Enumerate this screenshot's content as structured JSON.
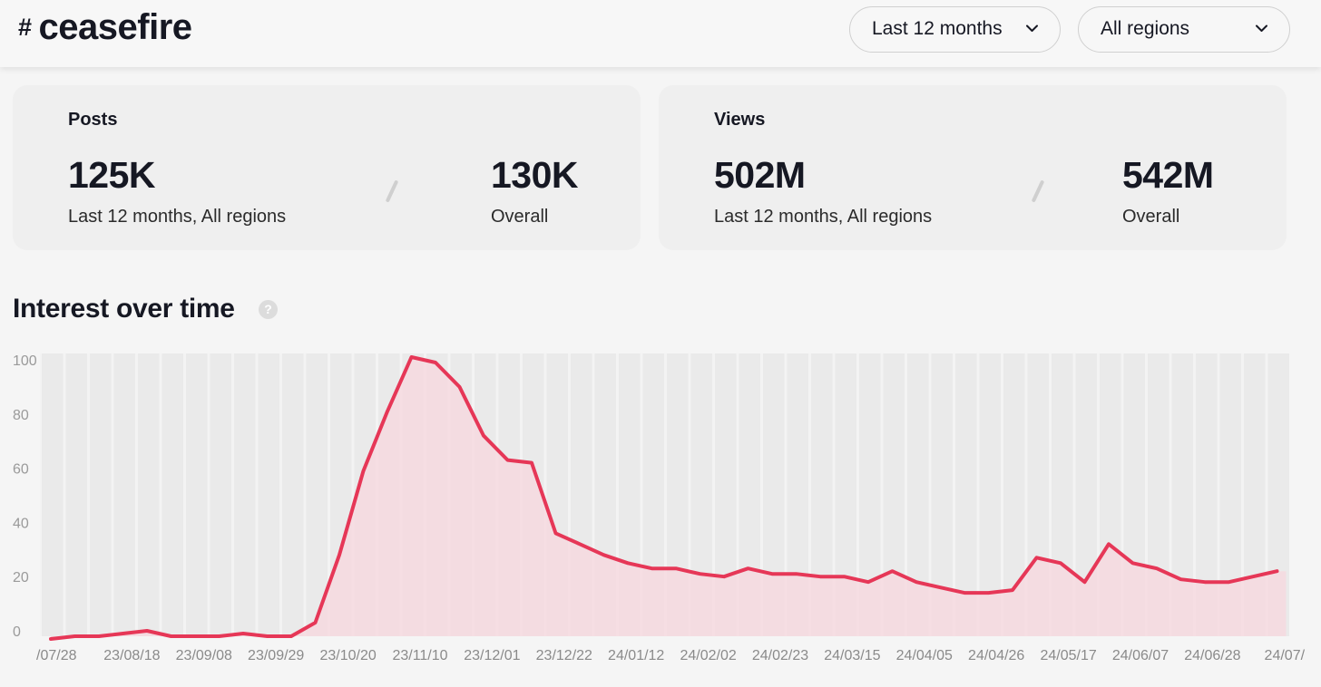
{
  "header": {
    "hash_symbol": "#",
    "hashtag": "ceasefire",
    "time_filter": "Last 12 months",
    "region_filter": "All regions"
  },
  "posts": {
    "label": "Posts",
    "period_value": "125K",
    "period_caption": "Last 12 months, All regions",
    "overall_value": "130K",
    "overall_caption": "Overall"
  },
  "views": {
    "label": "Views",
    "period_value": "502M",
    "period_caption": "Last 12 months, All regions",
    "overall_value": "542M",
    "overall_caption": "Overall"
  },
  "section": {
    "title": "Interest over time",
    "help_symbol": "?"
  },
  "colors": {
    "line": "#e63757",
    "area": "#f6d9df",
    "stripe": "#eaeaea"
  },
  "chart_data": {
    "type": "area",
    "title": "",
    "xlabel": "",
    "ylabel": "",
    "ylim": [
      0,
      100
    ],
    "yticks": [
      0,
      20,
      40,
      60,
      80,
      100
    ],
    "xtick_labels": [
      "/07/28",
      "23/08/18",
      "23/09/08",
      "23/09/29",
      "23/10/20",
      "23/11/10",
      "23/12/01",
      "23/12/22",
      "24/01/12",
      "24/02/02",
      "24/02/23",
      "24/03/15",
      "24/04/05",
      "24/04/26",
      "24/05/17",
      "24/06/07",
      "24/06/28",
      "24/07/"
    ],
    "grid": true,
    "series": [
      {
        "values": [
          -3,
          -2,
          -2,
          -1,
          0,
          -2,
          -2,
          -2,
          -1,
          -2,
          -2,
          3,
          28,
          59,
          81,
          101,
          99,
          90,
          72,
          63,
          62,
          36,
          32,
          28,
          25,
          23,
          23,
          21,
          20,
          23,
          21,
          21,
          20,
          20,
          18,
          22,
          18,
          16,
          14,
          14,
          15,
          27,
          25,
          18,
          32,
          25,
          23,
          19,
          18,
          18,
          20,
          22
        ]
      }
    ]
  }
}
